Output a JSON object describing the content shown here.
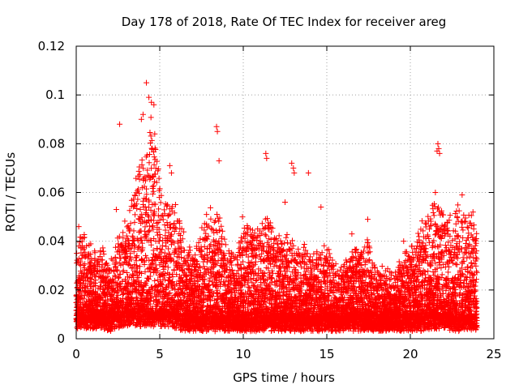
{
  "chart_data": {
    "type": "scatter",
    "title": "Day 178 of 2018, Rate Of TEC Index for receiver areg",
    "xlabel": "GPS time / hours",
    "ylabel": "ROTI / TECUs",
    "xlim": [
      0,
      25
    ],
    "ylim": [
      0,
      0.12
    ],
    "grid": true,
    "marker": "+",
    "marker_color": "#ff0000",
    "x_ticks": [
      {
        "value": 0,
        "label": "0"
      },
      {
        "value": 5,
        "label": "5"
      },
      {
        "value": 10,
        "label": "10"
      },
      {
        "value": 15,
        "label": "15"
      },
      {
        "value": 20,
        "label": "20"
      },
      {
        "value": 25,
        "label": "25"
      }
    ],
    "y_ticks": [
      {
        "value": 0,
        "label": "0"
      },
      {
        "value": 0.02,
        "label": "0.02"
      },
      {
        "value": 0.04,
        "label": "0.04"
      },
      {
        "value": 0.06,
        "label": "0.06"
      },
      {
        "value": 0.08,
        "label": "0.08"
      },
      {
        "value": 0.1,
        "label": "0.1"
      },
      {
        "value": 0.12,
        "label": "0.12"
      }
    ],
    "point_density": {
      "description": "Dense scatter of ROTI samples; envelope per hour used to generate points",
      "hours": [
        0,
        0.5,
        1,
        1.5,
        2,
        2.5,
        3,
        3.5,
        4,
        4.5,
        5,
        5.5,
        6,
        6.5,
        7,
        7.5,
        8,
        8.5,
        9,
        9.5,
        10,
        10.5,
        11,
        11.5,
        12,
        12.5,
        13,
        13.5,
        14,
        14.5,
        15,
        15.5,
        16,
        16.5,
        17,
        17.5,
        18,
        18.5,
        19,
        19.5,
        20,
        20.5,
        21,
        21.5,
        22,
        22.5,
        23,
        23.5,
        24
      ],
      "base": [
        0.008,
        0.008,
        0.008,
        0.008,
        0.007,
        0.008,
        0.009,
        0.009,
        0.009,
        0.009,
        0.009,
        0.009,
        0.008,
        0.007,
        0.007,
        0.007,
        0.007,
        0.007,
        0.007,
        0.007,
        0.007,
        0.007,
        0.007,
        0.007,
        0.007,
        0.007,
        0.007,
        0.007,
        0.007,
        0.007,
        0.007,
        0.007,
        0.007,
        0.007,
        0.007,
        0.007,
        0.007,
        0.007,
        0.007,
        0.007,
        0.007,
        0.007,
        0.007,
        0.008,
        0.008,
        0.007,
        0.007,
        0.007,
        0.007
      ],
      "upper": [
        0.04,
        0.046,
        0.035,
        0.038,
        0.03,
        0.04,
        0.052,
        0.066,
        0.075,
        0.09,
        0.07,
        0.058,
        0.056,
        0.04,
        0.036,
        0.044,
        0.052,
        0.052,
        0.038,
        0.035,
        0.048,
        0.046,
        0.046,
        0.05,
        0.042,
        0.042,
        0.04,
        0.038,
        0.035,
        0.036,
        0.038,
        0.032,
        0.03,
        0.035,
        0.038,
        0.04,
        0.028,
        0.028,
        0.025,
        0.034,
        0.035,
        0.045,
        0.05,
        0.06,
        0.05,
        0.052,
        0.058,
        0.052,
        0.048
      ]
    },
    "notable_points": [
      {
        "x": 2.6,
        "y": 0.088
      },
      {
        "x": 3.9,
        "y": 0.09
      },
      {
        "x": 4.0,
        "y": 0.092
      },
      {
        "x": 4.2,
        "y": 0.105
      },
      {
        "x": 4.35,
        "y": 0.099
      },
      {
        "x": 4.5,
        "y": 0.097
      },
      {
        "x": 4.65,
        "y": 0.096
      },
      {
        "x": 4.7,
        "y": 0.084
      },
      {
        "x": 4.55,
        "y": 0.078
      },
      {
        "x": 5.6,
        "y": 0.071
      },
      {
        "x": 5.7,
        "y": 0.068
      },
      {
        "x": 8.4,
        "y": 0.087
      },
      {
        "x": 8.45,
        "y": 0.085
      },
      {
        "x": 8.55,
        "y": 0.073
      },
      {
        "x": 11.35,
        "y": 0.076
      },
      {
        "x": 11.4,
        "y": 0.074
      },
      {
        "x": 12.9,
        "y": 0.072
      },
      {
        "x": 13.0,
        "y": 0.07
      },
      {
        "x": 13.05,
        "y": 0.068
      },
      {
        "x": 13.9,
        "y": 0.068
      },
      {
        "x": 21.65,
        "y": 0.08
      },
      {
        "x": 21.7,
        "y": 0.078
      },
      {
        "x": 21.6,
        "y": 0.077
      },
      {
        "x": 21.75,
        "y": 0.076
      },
      {
        "x": 21.5,
        "y": 0.06
      },
      {
        "x": 0.15,
        "y": 0.046
      },
      {
        "x": 2.4,
        "y": 0.053
      },
      {
        "x": 7.8,
        "y": 0.051
      },
      {
        "x": 9.95,
        "y": 0.05
      },
      {
        "x": 12.5,
        "y": 0.056
      },
      {
        "x": 14.65,
        "y": 0.054
      },
      {
        "x": 16.5,
        "y": 0.043
      },
      {
        "x": 17.45,
        "y": 0.049
      },
      {
        "x": 19.6,
        "y": 0.04
      },
      {
        "x": 23.1,
        "y": 0.059
      },
      {
        "x": 23.75,
        "y": 0.052
      }
    ]
  }
}
